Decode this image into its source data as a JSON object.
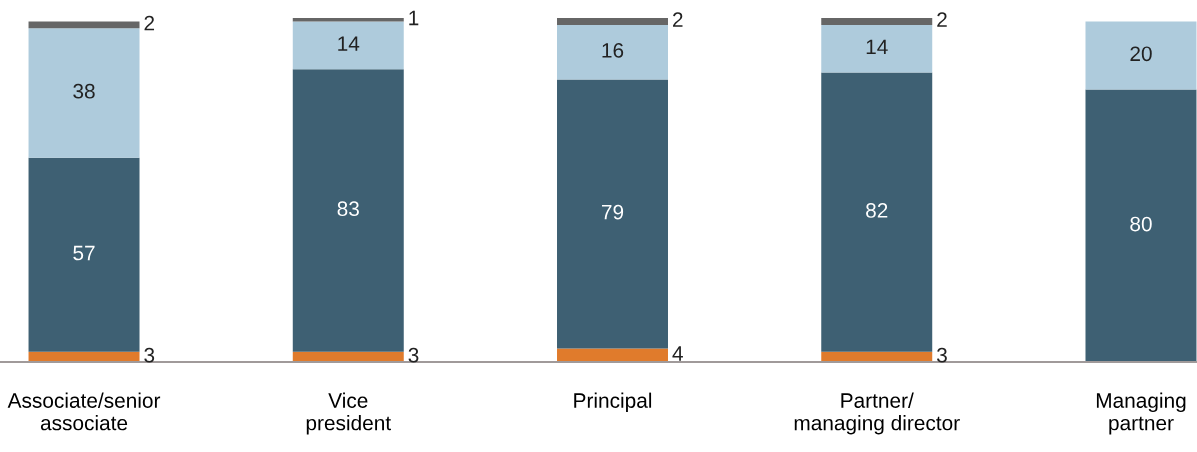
{
  "chart_data": {
    "type": "bar",
    "stacked": true,
    "data_labels": true,
    "categories": [
      "Associate/senior\nassociate",
      "Vice\npresident",
      "Principal",
      "Partner/\nmanaging director",
      "Managing\npartner"
    ],
    "series": [
      {
        "color": "#e07b2c",
        "values": [
          3,
          3,
          4,
          3,
          null
        ]
      },
      {
        "color": "#3e6073",
        "values": [
          57,
          83,
          79,
          82,
          80
        ]
      },
      {
        "color": "#aecbdc",
        "values": [
          38,
          14,
          16,
          14,
          20
        ]
      },
      {
        "color": "#666666",
        "values": [
          2,
          1,
          2,
          2,
          null
        ]
      }
    ]
  }
}
